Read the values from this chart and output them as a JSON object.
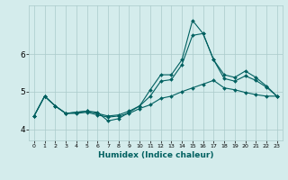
{
  "xlabel": "Humidex (Indice chaleur)",
  "xlim": [
    -0.5,
    23.5
  ],
  "ylim": [
    3.7,
    7.3
  ],
  "yticks": [
    4,
    5,
    6
  ],
  "xticks": [
    0,
    1,
    2,
    3,
    4,
    5,
    6,
    7,
    8,
    9,
    10,
    11,
    12,
    13,
    14,
    15,
    16,
    17,
    18,
    19,
    20,
    21,
    22,
    23
  ],
  "bg_color": "#d4ecec",
  "grid_color": "#aacaca",
  "line_color": "#006060",
  "line1_y": [
    4.35,
    4.88,
    4.62,
    4.42,
    4.42,
    4.45,
    4.38,
    4.32,
    4.35,
    4.42,
    4.55,
    4.65,
    4.82,
    4.88,
    5.0,
    5.1,
    5.2,
    5.3,
    5.1,
    5.05,
    4.98,
    4.92,
    4.88,
    4.88
  ],
  "line2_y": [
    4.35,
    4.88,
    4.62,
    4.42,
    4.45,
    4.48,
    4.42,
    4.35,
    4.38,
    4.48,
    4.62,
    4.88,
    5.28,
    5.32,
    5.72,
    6.5,
    6.55,
    5.85,
    5.35,
    5.28,
    5.42,
    5.3,
    5.12,
    4.88
  ],
  "line3_y": [
    4.35,
    4.88,
    4.62,
    4.42,
    4.45,
    4.48,
    4.45,
    4.22,
    4.28,
    4.45,
    4.62,
    5.05,
    5.45,
    5.45,
    5.85,
    6.9,
    6.55,
    5.85,
    5.45,
    5.38,
    5.55,
    5.38,
    5.15,
    4.88
  ],
  "markersize": 2.0,
  "linewidth": 0.8,
  "xlabel_fontsize": 6.5,
  "ytick_fontsize": 6.5,
  "xtick_fontsize": 4.5
}
